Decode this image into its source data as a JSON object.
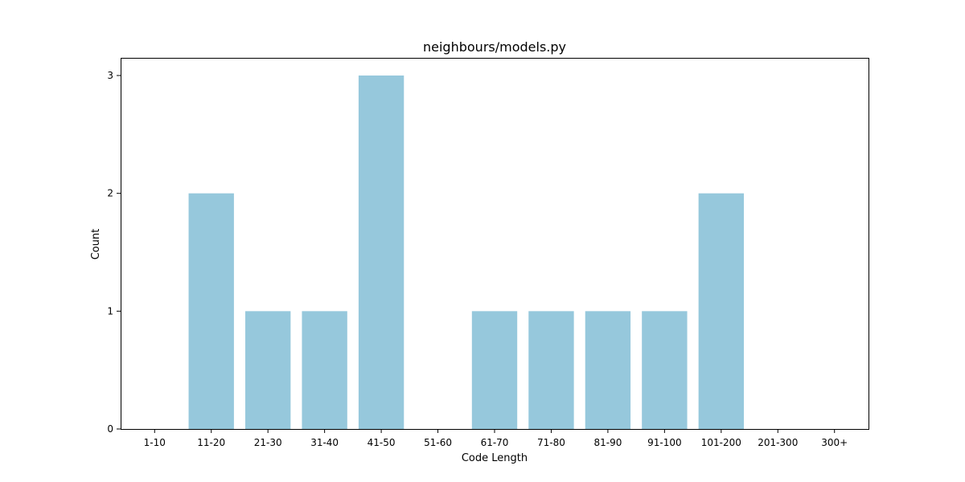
{
  "chart_data": {
    "type": "bar",
    "title": "neighbours/models.py",
    "xlabel": "Code Length",
    "ylabel": "Count",
    "categories": [
      "1-10",
      "11-20",
      "21-30",
      "31-40",
      "41-50",
      "51-60",
      "61-70",
      "71-80",
      "81-90",
      "91-100",
      "101-200",
      "201-300",
      "300+"
    ],
    "values": [
      0,
      2,
      1,
      1,
      3,
      0,
      1,
      1,
      1,
      1,
      2,
      0,
      0
    ],
    "yticks": [
      0,
      1,
      2,
      3
    ],
    "ylim": [
      0,
      3.15
    ],
    "grid": false,
    "legend": "none",
    "bar_color": "#96c8dc"
  }
}
